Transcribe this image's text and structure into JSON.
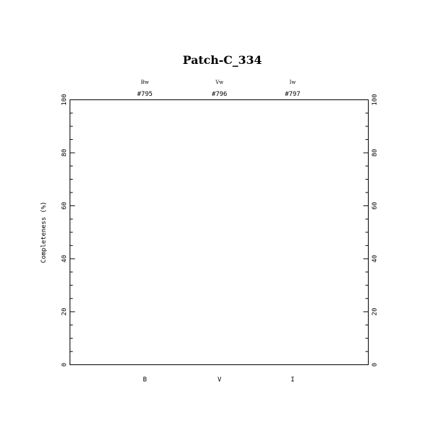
{
  "chart_data": {
    "type": "scatter",
    "title": "Patch-C_334",
    "ylabel": "Completeness (%)",
    "xlabel": "",
    "ylim": [
      0,
      100
    ],
    "y_major_ticks": [
      0,
      20,
      40,
      60,
      80,
      100
    ],
    "y_minor_step": 5,
    "categories": [
      "B",
      "V",
      "I"
    ],
    "filters": [
      "Bw",
      "Vw",
      "Iw"
    ],
    "ids": [
      "#795",
      "#796",
      "#797"
    ],
    "series": [],
    "grid": false,
    "legend": "none"
  }
}
